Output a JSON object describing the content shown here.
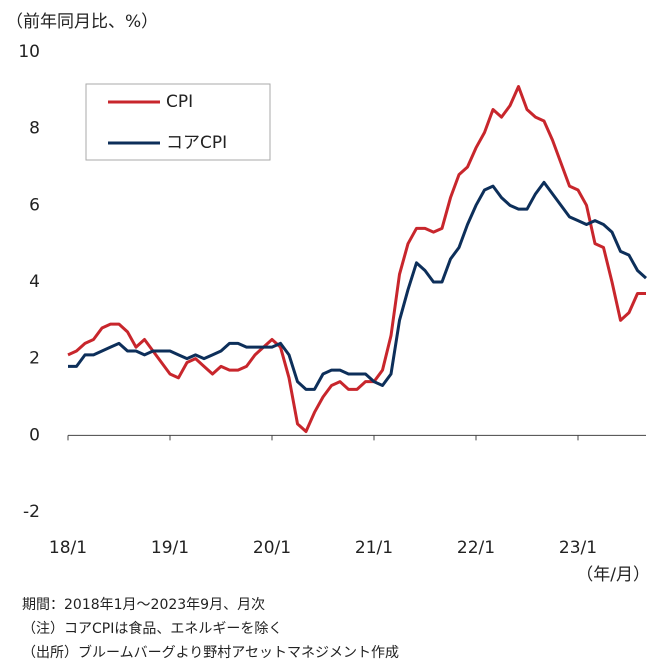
{
  "chart_data": {
    "type": "line",
    "y_label": "（前年同月比、%）",
    "x_label": "（年/月）",
    "categories": [
      "18/1",
      null,
      null,
      null,
      null,
      null,
      null,
      null,
      null,
      null,
      null,
      null,
      "19/1",
      null,
      null,
      null,
      null,
      null,
      null,
      null,
      null,
      null,
      null,
      null,
      "20/1",
      null,
      null,
      null,
      null,
      null,
      null,
      null,
      null,
      null,
      null,
      null,
      "21/1",
      null,
      null,
      null,
      null,
      null,
      null,
      null,
      null,
      null,
      null,
      null,
      "22/1",
      null,
      null,
      null,
      null,
      null,
      null,
      null,
      null,
      null,
      null,
      null,
      "23/1",
      null,
      null,
      null,
      null,
      null,
      null,
      null,
      null
    ],
    "series": [
      {
        "name": "CPI",
        "color": "#c8262c",
        "values": [
          2.1,
          2.2,
          2.4,
          2.5,
          2.8,
          2.9,
          2.9,
          2.7,
          2.3,
          2.5,
          2.2,
          1.9,
          1.6,
          1.5,
          1.9,
          2.0,
          1.8,
          1.6,
          1.8,
          1.7,
          1.7,
          1.8,
          2.1,
          2.3,
          2.5,
          2.3,
          1.5,
          0.3,
          0.1,
          0.6,
          1.0,
          1.3,
          1.4,
          1.2,
          1.2,
          1.4,
          1.4,
          1.7,
          2.6,
          4.2,
          5.0,
          5.4,
          5.4,
          5.3,
          5.4,
          6.2,
          6.8,
          7.0,
          7.5,
          7.9,
          8.5,
          8.3,
          8.6,
          9.1,
          8.5,
          8.3,
          8.2,
          7.7,
          7.1,
          6.5,
          6.4,
          6.0,
          5.0,
          4.9,
          4.0,
          3.0,
          3.2,
          3.7,
          3.7
        ]
      },
      {
        "name": "コアCPI",
        "color": "#0d2f5a",
        "values": [
          1.8,
          1.8,
          2.1,
          2.1,
          2.2,
          2.3,
          2.4,
          2.2,
          2.2,
          2.1,
          2.2,
          2.2,
          2.2,
          2.1,
          2.0,
          2.1,
          2.0,
          2.1,
          2.2,
          2.4,
          2.4,
          2.3,
          2.3,
          2.3,
          2.3,
          2.4,
          2.1,
          1.4,
          1.2,
          1.2,
          1.6,
          1.7,
          1.7,
          1.6,
          1.6,
          1.6,
          1.4,
          1.3,
          1.6,
          3.0,
          3.8,
          4.5,
          4.3,
          4.0,
          4.0,
          4.6,
          4.9,
          5.5,
          6.0,
          6.4,
          6.5,
          6.2,
          6.0,
          5.9,
          5.9,
          6.3,
          6.6,
          6.3,
          6.0,
          5.7,
          5.6,
          5.5,
          5.6,
          5.5,
          5.3,
          4.8,
          4.7,
          4.3,
          4.1
        ]
      }
    ],
    "ylim": [
      -2,
      10
    ],
    "yticks": [
      -2,
      0,
      2,
      4,
      6,
      8,
      10
    ],
    "grid": false,
    "legend": "upper left",
    "notes": [
      "期間：2018年1月～2023年9月、月次",
      "（注）コアCPIは食品、エネルギーを除く",
      "（出所）ブルームバーグより野村アセットマネジメント作成"
    ]
  }
}
